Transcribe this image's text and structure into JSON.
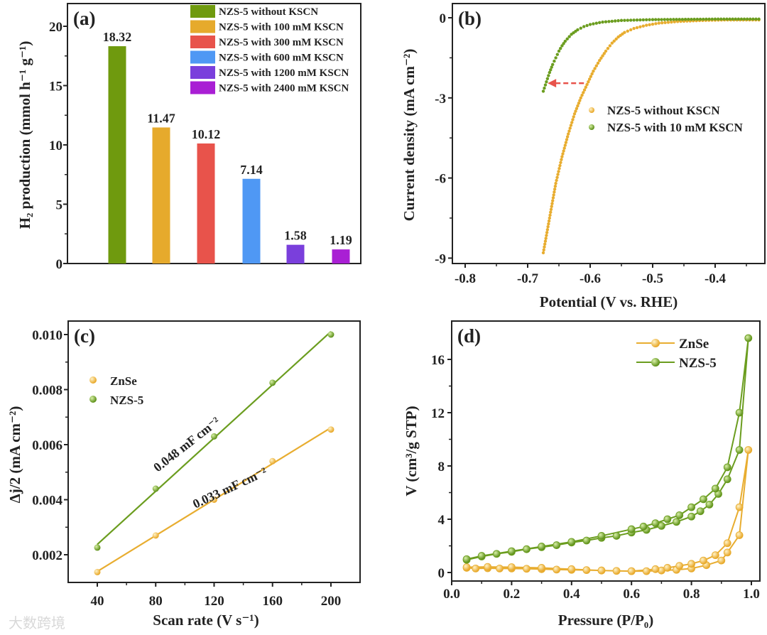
{
  "watermark": "大数跨境",
  "chart_data": [
    {
      "panel": "(a)",
      "type": "bar",
      "ylabel": "H₂ production  (mmol h⁻¹ g⁻¹)",
      "ylim": [
        0,
        22
      ],
      "yticks": [
        "0",
        "5",
        "10",
        "15",
        "20"
      ],
      "categories": [
        "NZS-5 without KSCN",
        "NZS-5 with 100 mM KSCN",
        "NZS-5 with 300 mM KSCN",
        "NZS-5 with 600 mM KSCN",
        "NZS-5 with 1200 mM KSCN",
        "NZS-5 with 2400 mM KSCN"
      ],
      "values": [
        18.32,
        11.47,
        10.12,
        7.14,
        1.58,
        1.19
      ],
      "labels": [
        "18.32",
        "11.47",
        "10.12",
        "7.14",
        "1.58",
        "1.19"
      ],
      "colors": [
        "#6f9a0e",
        "#e6aa2c",
        "#e8534b",
        "#4f98f4",
        "#7a3fdc",
        "#a91fd4"
      ],
      "legend_position": "top-right"
    },
    {
      "panel": "(b)",
      "type": "scatter",
      "xlabel": "Potential (V vs. RHE)",
      "ylabel": "Current density  (mA cm⁻²)",
      "xlim": [
        -0.82,
        -0.32
      ],
      "ylim": [
        -9.3,
        0.5
      ],
      "xticks": [
        "-0.8",
        "-0.7",
        "-0.6",
        "-0.5",
        "-0.4"
      ],
      "yticks": [
        "0",
        "-3",
        "-6",
        "-9"
      ],
      "annotation": "red dashed arrow pointing left at about -2.4 mA cm⁻²",
      "series": [
        {
          "name": "NZS-5 without KSCN",
          "color": "#e8ad30",
          "x": [
            -0.675,
            -0.665,
            -0.655,
            -0.645,
            -0.635,
            -0.625,
            -0.615,
            -0.605,
            -0.595,
            -0.585,
            -0.575,
            -0.565,
            -0.555,
            -0.545,
            -0.53,
            -0.51,
            -0.49,
            -0.46,
            -0.42,
            -0.38,
            -0.33
          ],
          "y": [
            -8.8,
            -7.5,
            -6.2,
            -5.2,
            -4.35,
            -3.6,
            -3.0,
            -2.5,
            -2.0,
            -1.6,
            -1.25,
            -0.95,
            -0.72,
            -0.55,
            -0.4,
            -0.28,
            -0.2,
            -0.14,
            -0.1,
            -0.08,
            -0.08
          ]
        },
        {
          "name": "NZS-5 with 10 mM KSCN",
          "color": "#6b9d1f",
          "x": [
            -0.675,
            -0.67,
            -0.665,
            -0.66,
            -0.655,
            -0.65,
            -0.645,
            -0.64,
            -0.63,
            -0.62,
            -0.61,
            -0.6,
            -0.58,
            -0.55,
            -0.5,
            -0.4,
            -0.33
          ],
          "y": [
            -2.75,
            -2.4,
            -2.05,
            -1.75,
            -1.5,
            -1.25,
            -1.05,
            -0.88,
            -0.62,
            -0.45,
            -0.33,
            -0.25,
            -0.16,
            -0.1,
            -0.07,
            -0.05,
            -0.05
          ]
        }
      ],
      "legend_position": "center-right"
    },
    {
      "panel": "(c)",
      "type": "scatter",
      "xlabel": "Scan rate (V s⁻¹)",
      "ylabel": "Δj/2 (mA cm⁻²)",
      "xlim": [
        20,
        220
      ],
      "ylim": [
        0.0011,
        0.0104
      ],
      "xticks": [
        "40",
        "80",
        "120",
        "160",
        "200"
      ],
      "yticks": [
        "0.002",
        "0.004",
        "0.006",
        "0.008",
        "0.010"
      ],
      "series": [
        {
          "name": "ZnSe",
          "color": "#e8ad30",
          "x": [
            40,
            80,
            120,
            160,
            200
          ],
          "y": [
            0.00137,
            0.0027,
            0.004,
            0.0054,
            0.00655
          ],
          "fit_label": "0.033 mF cm⁻²"
        },
        {
          "name": "NZS-5",
          "color": "#6b9d1f",
          "x": [
            40,
            80,
            120,
            160,
            200
          ],
          "y": [
            0.00226,
            0.0044,
            0.0063,
            0.00825,
            0.01
          ],
          "fit_label": "0.048 mF cm⁻²"
        }
      ],
      "legend_position": "top-left"
    },
    {
      "panel": "(d)",
      "type": "line",
      "xlabel": "Pressure (P/P₀)",
      "ylabel": "V (cm³/g STP)",
      "xlim": [
        0,
        1.05
      ],
      "ylim": [
        -0.6,
        18.6
      ],
      "xticks": [
        "0.0",
        "0.2",
        "0.4",
        "0.6",
        "0.8",
        "1.0"
      ],
      "yticks": [
        "0",
        "4",
        "8",
        "12",
        "16"
      ],
      "series": [
        {
          "name": "ZnSe",
          "color": "#e8ad30",
          "x": [
            0.05,
            0.08,
            0.12,
            0.16,
            0.2,
            0.25,
            0.3,
            0.35,
            0.4,
            0.45,
            0.5,
            0.55,
            0.6,
            0.65,
            0.7,
            0.75,
            0.8,
            0.85,
            0.9,
            0.92,
            0.96,
            0.99,
            0.96,
            0.92,
            0.88,
            0.84,
            0.8,
            0.76,
            0.72,
            0.68,
            0.6,
            0.5,
            0.4,
            0.3,
            0.2,
            0.12,
            0.05
          ],
          "y": [
            0.35,
            0.3,
            0.32,
            0.3,
            0.3,
            0.28,
            0.25,
            0.22,
            0.2,
            0.18,
            0.15,
            0.12,
            0.1,
            0.1,
            0.15,
            0.2,
            0.3,
            0.55,
            0.9,
            1.5,
            2.8,
            9.2,
            4.9,
            2.2,
            1.3,
            0.9,
            0.65,
            0.5,
            0.35,
            0.25,
            0.1,
            0.15,
            0.25,
            0.35,
            0.4,
            0.42,
            0.4
          ]
        },
        {
          "name": "NZS-5",
          "color": "#6b9d1f",
          "x": [
            0.05,
            0.1,
            0.15,
            0.2,
            0.25,
            0.3,
            0.35,
            0.4,
            0.45,
            0.5,
            0.55,
            0.6,
            0.65,
            0.7,
            0.75,
            0.8,
            0.83,
            0.86,
            0.89,
            0.92,
            0.96,
            0.99,
            0.96,
            0.92,
            0.88,
            0.84,
            0.8,
            0.76,
            0.72,
            0.68,
            0.64,
            0.6,
            0.5,
            0.4,
            0.3,
            0.2,
            0.1,
            0.05
          ],
          "y": [
            0.95,
            1.2,
            1.4,
            1.55,
            1.75,
            1.9,
            2.05,
            2.25,
            2.4,
            2.6,
            2.75,
            3.0,
            3.2,
            3.5,
            3.8,
            4.2,
            4.6,
            5.1,
            5.9,
            7.0,
            9.2,
            17.6,
            12.0,
            7.9,
            6.3,
            5.5,
            4.9,
            4.3,
            4.0,
            3.7,
            3.45,
            3.25,
            2.75,
            2.3,
            1.95,
            1.6,
            1.25,
            1.0
          ]
        }
      ],
      "legend_position": "top-right"
    }
  ]
}
